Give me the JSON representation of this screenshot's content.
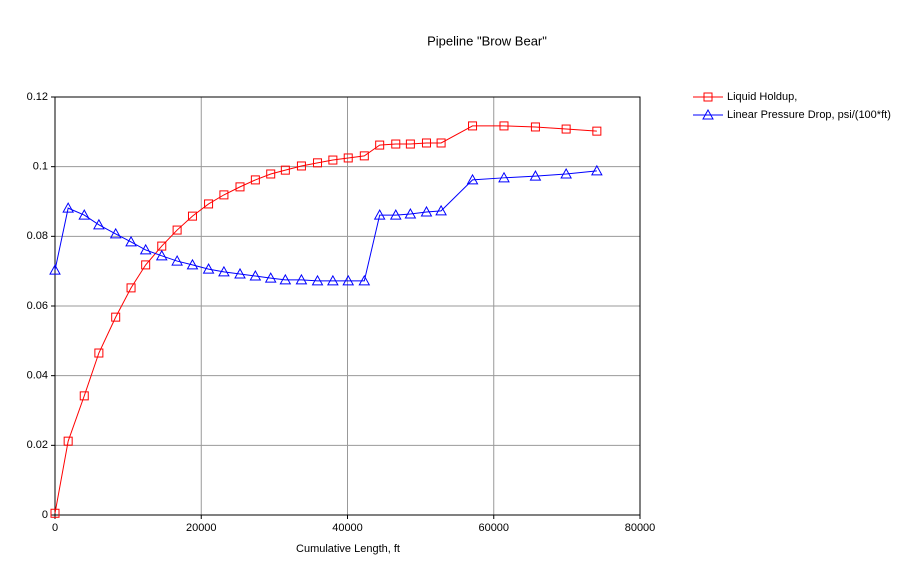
{
  "chart_data": {
    "type": "line",
    "title": "Pipeline \"Brow Bear\"",
    "x_label": "Cumulative Length, ft",
    "x": [
      0,
      1800,
      4000,
      6000,
      8300,
      10400,
      12400,
      14600,
      16700,
      18800,
      21000,
      23100,
      25300,
      27400,
      29500,
      31500,
      33700,
      35900,
      38000,
      40100,
      42300,
      44400,
      46600,
      48600,
      50800,
      52800,
      57100,
      61400,
      65700,
      69900,
      74100
    ],
    "series": [
      {
        "name": "Liquid Holdup,",
        "color": "#ff0000",
        "marker": "square",
        "values": [
          0.0005,
          0.0212,
          0.0342,
          0.0465,
          0.0568,
          0.0652,
          0.0718,
          0.0772,
          0.0818,
          0.0858,
          0.0893,
          0.0919,
          0.0942,
          0.0962,
          0.0979,
          0.099,
          0.1002,
          0.1011,
          0.1019,
          0.1025,
          0.1031,
          0.1062,
          0.1065,
          0.1065,
          0.1068,
          0.1068,
          0.1117,
          0.1117,
          0.1114,
          0.1108,
          0.1102
        ]
      },
      {
        "name": "Linear Pressure Drop, psi/(100*ft)",
        "color": "#0000ff",
        "marker": "triangle",
        "values": [
          0.0703,
          0.0881,
          0.0861,
          0.0833,
          0.0807,
          0.0784,
          0.0761,
          0.0744,
          0.0729,
          0.0718,
          0.0706,
          0.0698,
          0.0692,
          0.0686,
          0.068,
          0.0675,
          0.0675,
          0.0672,
          0.0672,
          0.0672,
          0.0672,
          0.0861,
          0.0861,
          0.0864,
          0.087,
          0.0873,
          0.0962,
          0.0968,
          0.0973,
          0.0979,
          0.0988
        ]
      }
    ],
    "xlim": [
      0,
      80000
    ],
    "xticks": [
      0,
      20000,
      40000,
      60000,
      80000
    ],
    "ylim": [
      0,
      0.12
    ],
    "yticks": [
      0,
      0.02,
      0.04,
      0.06,
      0.08,
      0.1,
      0.12
    ],
    "grid": true,
    "legend": "outside-right"
  }
}
